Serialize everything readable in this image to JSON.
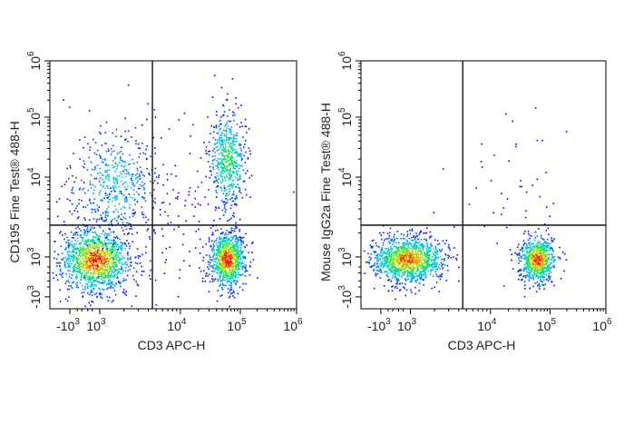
{
  "chart_data": [
    {
      "type": "scatter",
      "subtype": "flow-cytometry-density-dot-plot",
      "xlabel": "CD3 APC-H",
      "ylabel": "CD195 Fine Test® 488-H",
      "x_scale": "biexponential",
      "y_scale": "biexponential",
      "x_ticks": [
        {
          "base": "-10",
          "exp": "3",
          "value": -1000
        },
        {
          "base": "10",
          "exp": "3",
          "value": 1000
        },
        {
          "base": "10",
          "exp": "4",
          "value": 10000
        },
        {
          "base": "10",
          "exp": "5",
          "value": 100000
        },
        {
          "base": "10",
          "exp": "6",
          "value": 1000000
        }
      ],
      "y_ticks": [
        {
          "base": "-10",
          "exp": "3",
          "value": -1000
        },
        {
          "base": "10",
          "exp": "3",
          "value": 1000
        },
        {
          "base": "10",
          "exp": "4",
          "value": 10000
        },
        {
          "base": "10",
          "exp": "5",
          "value": 100000
        },
        {
          "base": "10",
          "exp": "6",
          "value": 1000000
        }
      ],
      "quadrant_gate": {
        "x": 4500,
        "y": 2500
      },
      "populations": [
        {
          "x": 700,
          "y": 900,
          "events": 1300
        },
        {
          "x": 1500,
          "y": 8000,
          "events": 450
        },
        {
          "x": 60000,
          "y": 900,
          "events": 900
        },
        {
          "x": 60000,
          "y": 20000,
          "events": 550
        },
        {
          "x": 5000,
          "y": 3000,
          "events": 200
        }
      ],
      "color_scale": [
        "#0000ff",
        "#00c8ff",
        "#00e060",
        "#f0f000",
        "#ff0000"
      ]
    },
    {
      "type": "scatter",
      "subtype": "flow-cytometry-density-dot-plot",
      "xlabel": "CD3 APC-H",
      "ylabel": "Mouse IgG2a Fine Test® 488-H",
      "x_scale": "biexponential",
      "y_scale": "biexponential",
      "x_ticks": [
        {
          "base": "-10",
          "exp": "3",
          "value": -1000
        },
        {
          "base": "10",
          "exp": "3",
          "value": 1000
        },
        {
          "base": "10",
          "exp": "4",
          "value": 10000
        },
        {
          "base": "10",
          "exp": "5",
          "value": 100000
        },
        {
          "base": "10",
          "exp": "6",
          "value": 1000000
        }
      ],
      "y_ticks": [
        {
          "base": "-10",
          "exp": "3",
          "value": -1000
        },
        {
          "base": "10",
          "exp": "3",
          "value": 1000
        },
        {
          "base": "10",
          "exp": "4",
          "value": 10000
        },
        {
          "base": "10",
          "exp": "5",
          "value": 100000
        },
        {
          "base": "10",
          "exp": "6",
          "value": 1000000
        }
      ],
      "quadrant_gate": {
        "x": 4500,
        "y": 2500
      },
      "populations": [
        {
          "x": 800,
          "y": 900,
          "events": 1300
        },
        {
          "x": 60000,
          "y": 900,
          "events": 750
        },
        {
          "x": 20000,
          "y": 8000,
          "events": 45
        }
      ],
      "color_scale": [
        "#0000ff",
        "#00c8ff",
        "#00e060",
        "#f0f000",
        "#ff0000"
      ]
    }
  ]
}
